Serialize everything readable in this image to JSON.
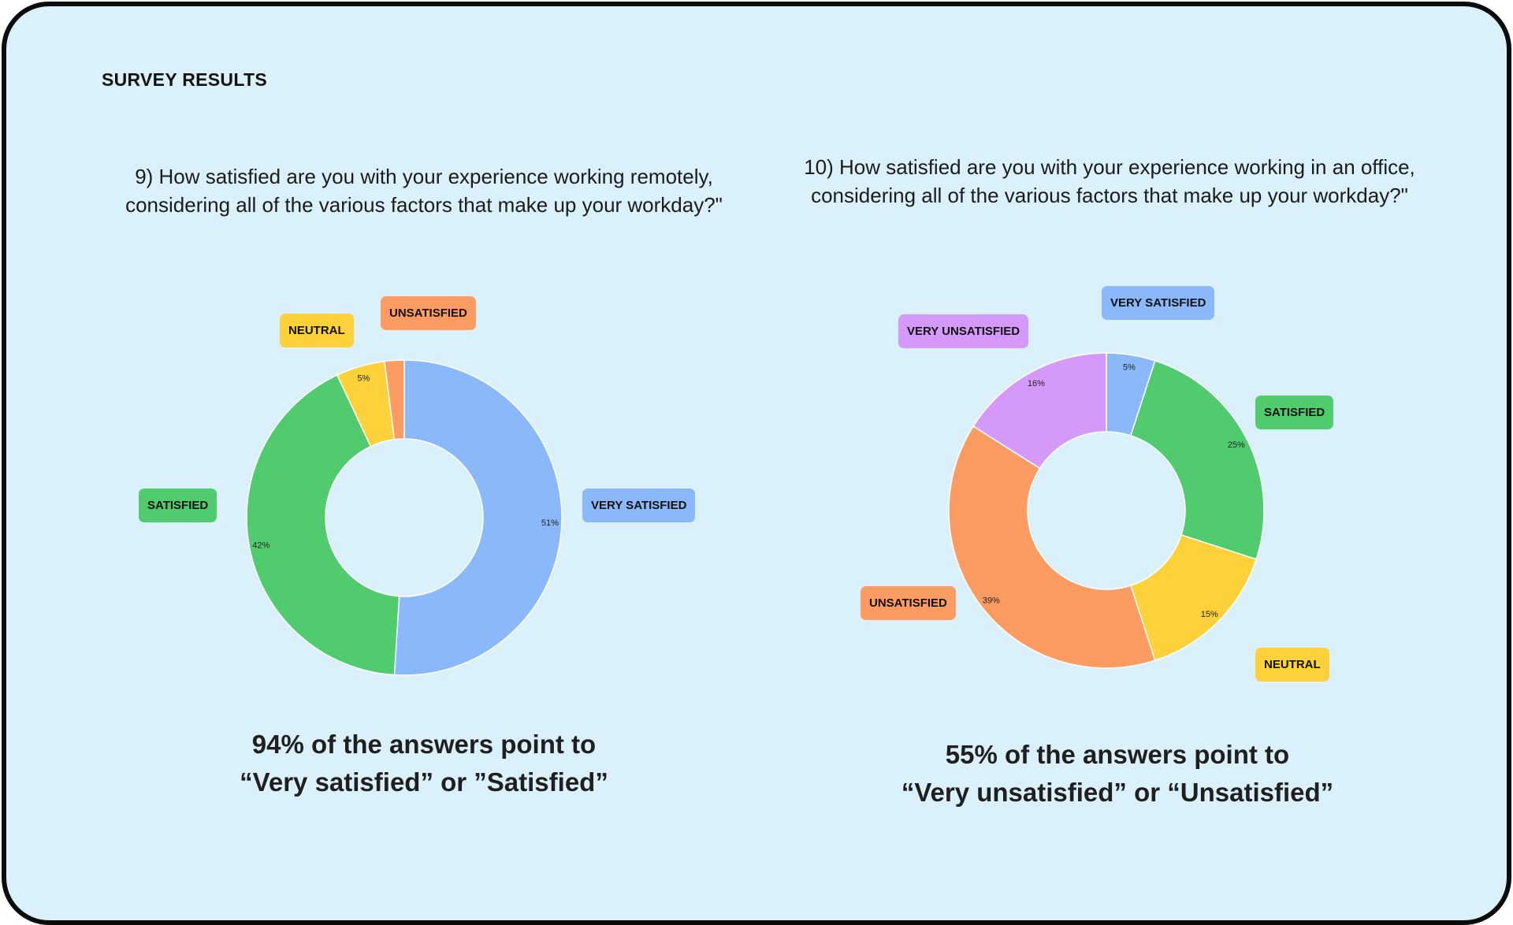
{
  "page": {
    "title": "SURVEY RESULTS"
  },
  "colors": {
    "very_satisfied": "#8ab8fb",
    "satisfied": "#50cc6f",
    "neutral": "#fcd13a",
    "unsatisfied": "#fd9c62",
    "very_unsatisfied": "#d59af9",
    "background": "#daf1fc"
  },
  "chart_data": [
    {
      "type": "pie",
      "donut": true,
      "title": "9) How satisfied are you with your experience working remotely, considering all of the various factors that make up your workday?\"",
      "slices": [
        {
          "label": "VERY SATISFIED",
          "value": 51,
          "pct_label": "51%",
          "color": "#8ab8fb"
        },
        {
          "label": "SATISFIED",
          "value": 42,
          "pct_label": "42%",
          "color": "#50cc6f"
        },
        {
          "label": "NEUTRAL",
          "value": 5,
          "pct_label": "5%",
          "color": "#fcd13a"
        },
        {
          "label": "UNSATISFIED",
          "value": 2,
          "pct_label": "",
          "color": "#fd9c62"
        }
      ],
      "summary_line1": "94% of the answers point to",
      "summary_line2": "“Very satisfied” or ”Satisfied”"
    },
    {
      "type": "pie",
      "donut": true,
      "title": "10) How satisfied are you with your experience working in an office, considering all of the various factors that make up your workday?\"",
      "slices": [
        {
          "label": "VERY SATISFIED",
          "value": 5,
          "pct_label": "5%",
          "color": "#8ab8fb"
        },
        {
          "label": "SATISFIED",
          "value": 25,
          "pct_label": "25%",
          "color": "#50cc6f"
        },
        {
          "label": "NEUTRAL",
          "value": 15,
          "pct_label": "15%",
          "color": "#fcd13a"
        },
        {
          "label": "UNSATISFIED",
          "value": 39,
          "pct_label": "39%",
          "color": "#fd9c62"
        },
        {
          "label": "VERY UNSATISFIED",
          "value": 16,
          "pct_label": "16%",
          "color": "#d59af9"
        }
      ],
      "summary_line1": "55% of the answers point to",
      "summary_line2": "“Very unsatisfied” or “Unsatisfied”"
    }
  ]
}
